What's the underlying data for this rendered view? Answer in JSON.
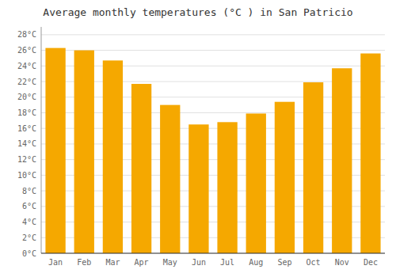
{
  "chart_data": {
    "type": "bar",
    "title": "Average monthly temperatures (°C ) in San Patricio",
    "categories": [
      "Jan",
      "Feb",
      "Mar",
      "Apr",
      "May",
      "Jun",
      "Jul",
      "Aug",
      "Sep",
      "Oct",
      "Nov",
      "Dec"
    ],
    "values": [
      26.3,
      26.0,
      24.7,
      21.7,
      19.0,
      16.5,
      16.8,
      17.9,
      19.4,
      21.9,
      23.7,
      25.6
    ],
    "color": "#F5A800",
    "ylim": [
      0,
      29
    ],
    "yticks": [
      {
        "value": 0,
        "label": "0°C"
      },
      {
        "value": 2,
        "label": "2°C"
      },
      {
        "value": 4,
        "label": "4°C"
      },
      {
        "value": 6,
        "label": "6°C"
      },
      {
        "value": 8,
        "label": "8°C"
      },
      {
        "value": 10,
        "label": "10°C"
      },
      {
        "value": 12,
        "label": "12°C"
      },
      {
        "value": 14,
        "label": "14°C"
      },
      {
        "value": 16,
        "label": "16°C"
      },
      {
        "value": 18,
        "label": "18°C"
      },
      {
        "value": 20,
        "label": "20°C"
      },
      {
        "value": 22,
        "label": "22°C"
      },
      {
        "value": 24,
        "label": "24°C"
      },
      {
        "value": 26,
        "label": "26°C"
      },
      {
        "value": 28,
        "label": "28°C"
      }
    ],
    "grid": true
  }
}
